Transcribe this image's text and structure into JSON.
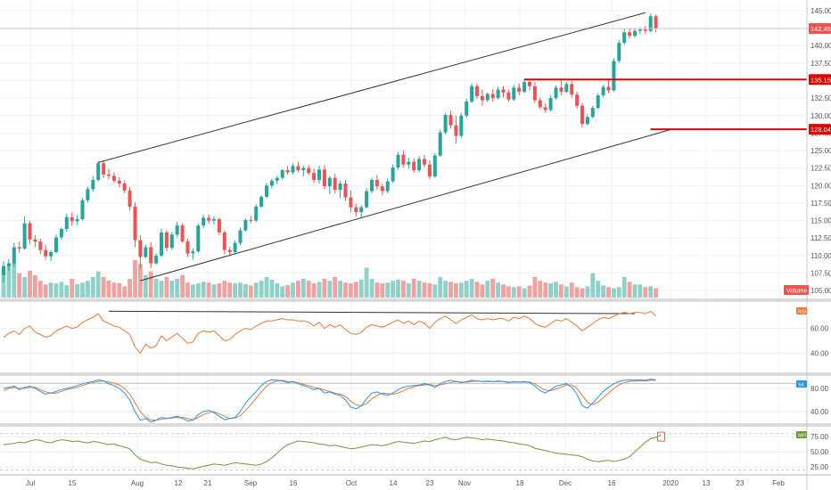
{
  "colors": {
    "up": "#26a69a",
    "down": "#ef5350",
    "vol_up": "#8fd0c8",
    "vol_down": "#f2a0a0",
    "level_line": "#e00000",
    "rsi": "#e8793a",
    "stoch_k": "#2196f3",
    "stoch_d": "#e8793a",
    "mfi": "#6a9a38",
    "trend": "#333333",
    "axis_text": "#555555"
  },
  "price_axis": {
    "ticks": [
      "145.00",
      "140.00",
      "137.50",
      "135.00",
      "132.50",
      "130.00",
      "127.50",
      "125.00",
      "122.50",
      "120.00",
      "117.50",
      "115.00",
      "112.50",
      "110.00",
      "107.50",
      "105.00"
    ]
  },
  "price_labels": {
    "last": "142.45",
    "level1": "135.15",
    "level2": "128.04"
  },
  "volume_label": "Volume",
  "rsi_panel": {
    "badge": "RSI",
    "ticks": [
      "60.00",
      "40.00"
    ]
  },
  "stoch_panel": {
    "badge": "SK",
    "ticks": [
      "80.00",
      "40.00"
    ]
  },
  "mfi_panel": {
    "badge": "MFI",
    "ticks": [
      "75.00",
      "50.00",
      "25.00"
    ]
  },
  "time_axis": {
    "labels": [
      "Jul",
      "15",
      "Aug",
      "12",
      "21",
      "Sep",
      "16",
      "Oct",
      "14",
      "23",
      "Nov",
      "18",
      "Dec",
      "16",
      "2020",
      "13",
      "23",
      "Feb"
    ]
  },
  "chart_data": {
    "type": "candlestick",
    "price_ylim": [
      104,
      145.5
    ],
    "candles": [
      [
        107.2,
        109.2,
        106.2,
        108.5
      ],
      [
        108.5,
        109.5,
        107.8,
        108.9
      ],
      [
        108.9,
        111.8,
        108.4,
        111.2
      ],
      [
        111.2,
        112.0,
        110.4,
        111.0
      ],
      [
        111.0,
        115.6,
        110.8,
        114.6
      ],
      [
        114.6,
        115.0,
        111.7,
        112.3
      ],
      [
        112.3,
        112.9,
        111.2,
        112.0
      ],
      [
        112.0,
        112.4,
        110.2,
        110.8
      ],
      [
        110.8,
        111.6,
        109.4,
        109.9
      ],
      [
        109.9,
        110.8,
        109.2,
        110.5
      ],
      [
        110.5,
        113.0,
        110.3,
        112.6
      ],
      [
        112.6,
        114.0,
        112.3,
        113.8
      ],
      [
        113.8,
        116.0,
        113.4,
        115.5
      ],
      [
        115.5,
        116.2,
        114.3,
        114.9
      ],
      [
        114.9,
        115.8,
        114.4,
        115.2
      ],
      [
        115.2,
        118.2,
        115.0,
        117.9
      ],
      [
        117.9,
        119.8,
        117.6,
        119.5
      ],
      [
        119.5,
        121.4,
        119.1,
        120.8
      ],
      [
        120.8,
        123.5,
        120.6,
        123.2
      ],
      [
        123.2,
        123.6,
        121.1,
        121.6
      ],
      [
        121.6,
        122.4,
        120.9,
        121.4
      ],
      [
        121.4,
        121.9,
        120.4,
        120.7
      ],
      [
        120.7,
        121.2,
        119.7,
        120.3
      ],
      [
        120.3,
        120.7,
        118.9,
        119.3
      ],
      [
        119.3,
        119.8,
        116.4,
        117.0
      ],
      [
        117.0,
        117.6,
        111.2,
        112.2
      ],
      [
        112.2,
        112.9,
        108.2,
        109.8
      ],
      [
        109.8,
        111.6,
        109.6,
        111.2
      ],
      [
        111.2,
        111.9,
        108.2,
        108.9
      ],
      [
        108.9,
        110.3,
        108.7,
        110.0
      ],
      [
        110.0,
        113.8,
        109.8,
        113.3
      ],
      [
        113.3,
        113.6,
        110.6,
        111.1
      ],
      [
        111.1,
        113.4,
        110.8,
        113.0
      ],
      [
        113.0,
        114.8,
        112.6,
        114.3
      ],
      [
        114.3,
        114.6,
        111.8,
        112.0
      ],
      [
        112.0,
        112.4,
        109.8,
        110.3
      ],
      [
        110.3,
        111.0,
        109.4,
        110.6
      ],
      [
        110.6,
        114.6,
        110.4,
        114.3
      ],
      [
        114.3,
        115.8,
        113.9,
        115.4
      ],
      [
        115.4,
        115.9,
        114.6,
        115.0
      ],
      [
        115.0,
        115.6,
        114.4,
        115.2
      ],
      [
        115.2,
        115.4,
        112.9,
        113.3
      ],
      [
        113.3,
        113.6,
        110.2,
        110.8
      ],
      [
        110.8,
        111.3,
        109.9,
        110.5
      ],
      [
        110.5,
        112.2,
        110.3,
        111.8
      ],
      [
        111.8,
        114.0,
        111.5,
        113.6
      ],
      [
        113.6,
        115.3,
        113.4,
        115.1
      ],
      [
        115.1,
        115.6,
        114.6,
        115.0
      ],
      [
        115.0,
        117.3,
        114.8,
        117.0
      ],
      [
        117.0,
        118.6,
        116.8,
        118.4
      ],
      [
        118.4,
        120.4,
        118.2,
        120.0
      ],
      [
        120.0,
        121.0,
        119.6,
        120.7
      ],
      [
        120.7,
        121.4,
        120.2,
        121.1
      ],
      [
        121.1,
        122.4,
        120.9,
        122.2
      ],
      [
        122.2,
        122.8,
        121.6,
        121.9
      ],
      [
        121.9,
        123.2,
        121.6,
        122.8
      ],
      [
        122.8,
        123.4,
        121.9,
        122.2
      ],
      [
        122.2,
        122.8,
        121.3,
        122.5
      ],
      [
        122.5,
        122.9,
        121.5,
        121.8
      ],
      [
        121.8,
        122.4,
        120.4,
        120.8
      ],
      [
        120.8,
        122.8,
        120.3,
        122.3
      ],
      [
        122.3,
        122.9,
        119.5,
        119.9
      ],
      [
        119.9,
        121.4,
        118.8,
        121.1
      ],
      [
        121.1,
        121.7,
        118.9,
        119.4
      ],
      [
        119.4,
        120.7,
        118.2,
        120.3
      ],
      [
        120.3,
        120.8,
        117.8,
        118.3
      ],
      [
        118.3,
        119.3,
        116.2,
        116.9
      ],
      [
        116.9,
        117.4,
        115.6,
        116.2
      ],
      [
        116.2,
        117.2,
        115.4,
        116.9
      ],
      [
        116.9,
        119.6,
        116.7,
        119.2
      ],
      [
        119.2,
        121.1,
        118.9,
        120.8
      ],
      [
        120.8,
        121.5,
        119.4,
        119.9
      ],
      [
        119.9,
        120.3,
        118.6,
        119.2
      ],
      [
        119.2,
        121.0,
        118.9,
        120.6
      ],
      [
        120.6,
        123.0,
        120.4,
        122.6
      ],
      [
        122.6,
        124.8,
        122.3,
        124.4
      ],
      [
        124.4,
        125.0,
        122.6,
        123.0
      ],
      [
        123.0,
        124.0,
        122.4,
        123.4
      ],
      [
        123.4,
        123.9,
        121.8,
        122.2
      ],
      [
        122.2,
        124.2,
        121.9,
        123.8
      ],
      [
        123.8,
        124.4,
        122.6,
        123.0
      ],
      [
        123.0,
        123.6,
        120.9,
        121.3
      ],
      [
        121.3,
        124.6,
        121.1,
        124.3
      ],
      [
        124.3,
        128.0,
        124.1,
        127.6
      ],
      [
        127.6,
        130.4,
        127.3,
        130.1
      ],
      [
        130.1,
        130.7,
        128.1,
        128.6
      ],
      [
        128.6,
        130.0,
        126.0,
        127.1
      ],
      [
        127.1,
        130.4,
        126.8,
        130.0
      ],
      [
        130.0,
        132.4,
        129.7,
        132.0
      ],
      [
        132.0,
        134.6,
        131.8,
        134.2
      ],
      [
        134.2,
        134.6,
        132.4,
        132.8
      ],
      [
        132.8,
        133.7,
        131.4,
        132.2
      ],
      [
        132.2,
        133.3,
        131.9,
        133.1
      ],
      [
        133.1,
        133.8,
        132.0,
        132.5
      ],
      [
        132.5,
        134.1,
        132.3,
        133.7
      ],
      [
        133.7,
        134.2,
        132.6,
        133.3
      ],
      [
        133.3,
        133.7,
        132.0,
        132.3
      ],
      [
        132.3,
        134.4,
        132.1,
        134.0
      ],
      [
        134.0,
        134.6,
        132.9,
        133.4
      ],
      [
        133.4,
        135.2,
        133.2,
        134.8
      ],
      [
        134.8,
        135.1,
        133.6,
        134.2
      ],
      [
        134.2,
        134.8,
        131.8,
        132.2
      ],
      [
        132.2,
        132.6,
        130.9,
        131.2
      ],
      [
        131.2,
        131.8,
        130.4,
        130.8
      ],
      [
        130.8,
        132.9,
        130.6,
        132.5
      ],
      [
        132.5,
        134.3,
        132.3,
        134.0
      ],
      [
        134.0,
        135.0,
        132.9,
        133.4
      ],
      [
        133.4,
        134.8,
        133.2,
        134.5
      ],
      [
        134.5,
        134.9,
        132.6,
        133.0
      ],
      [
        133.0,
        133.4,
        131.0,
        131.4
      ],
      [
        131.4,
        131.8,
        128.3,
        128.8
      ],
      [
        128.8,
        130.2,
        128.6,
        129.8
      ],
      [
        129.8,
        131.4,
        129.6,
        131.1
      ],
      [
        131.1,
        133.2,
        130.9,
        132.9
      ],
      [
        132.9,
        134.4,
        132.6,
        134.1
      ],
      [
        134.1,
        135.3,
        133.2,
        133.6
      ],
      [
        133.6,
        138.2,
        133.4,
        137.8
      ],
      [
        137.8,
        140.8,
        137.5,
        140.4
      ],
      [
        140.4,
        142.4,
        140.1,
        141.9
      ],
      [
        141.9,
        142.5,
        141.0,
        141.4
      ],
      [
        141.4,
        142.4,
        141.1,
        142.1
      ],
      [
        142.1,
        142.6,
        141.6,
        142.3
      ],
      [
        142.3,
        142.8,
        141.7,
        142.1
      ],
      [
        142.1,
        144.6,
        141.9,
        144.2
      ],
      [
        144.2,
        144.4,
        141.9,
        142.45
      ]
    ],
    "volume_rel": [
      0.75,
      0.85,
      0.95,
      0.65,
      0.55,
      0.72,
      0.6,
      0.45,
      0.35,
      0.4,
      0.38,
      0.42,
      0.33,
      0.5,
      0.36,
      0.4,
      0.45,
      0.55,
      0.7,
      0.55,
      0.45,
      0.4,
      0.38,
      0.3,
      0.5,
      1.0,
      0.9,
      0.6,
      0.7,
      0.5,
      0.45,
      0.55,
      0.45,
      0.5,
      0.6,
      0.4,
      0.35,
      0.38,
      0.42,
      0.4,
      0.35,
      0.38,
      0.45,
      0.4,
      0.38,
      0.4,
      0.36,
      0.32,
      0.4,
      0.45,
      0.55,
      0.48,
      0.38,
      0.3,
      0.33,
      0.4,
      0.45,
      0.5,
      0.45,
      0.38,
      0.42,
      0.5,
      0.45,
      0.55,
      0.45,
      0.4,
      0.38,
      0.42,
      0.48,
      0.8,
      0.5,
      0.4,
      0.38,
      0.4,
      0.45,
      0.48,
      0.45,
      0.38,
      0.5,
      0.45,
      0.4,
      0.38,
      0.35,
      0.55,
      0.45,
      0.42,
      0.38,
      0.4,
      0.45,
      0.5,
      0.42,
      0.35,
      0.45,
      0.5,
      0.4,
      0.35,
      0.3,
      0.28,
      0.3,
      0.25,
      0.32,
      0.55,
      0.45,
      0.4,
      0.38,
      0.42,
      0.35,
      0.3,
      0.4,
      0.28,
      0.25,
      0.3,
      0.65,
      0.45,
      0.32,
      0.28,
      0.25,
      0.28,
      0.55,
      0.42,
      0.35,
      0.35,
      0.28,
      0.3,
      0.25
    ],
    "trendlines": [
      {
        "from": [
          18,
          123.3
        ],
        "to": [
          122,
          144.7
        ]
      },
      {
        "from": [
          26,
          106.4
        ],
        "to": [
          127,
          128.04
        ]
      }
    ],
    "levels": [
      {
        "value": 135.15,
        "from_index": 99
      },
      {
        "value": 128.04,
        "from_index": 123
      }
    ],
    "rsi": {
      "ylim": [
        25,
        80
      ],
      "values": [
        53,
        56,
        58,
        55,
        60,
        62,
        57,
        55,
        53,
        54,
        58,
        60,
        62,
        60,
        61,
        65,
        67,
        69,
        72,
        66,
        64,
        62,
        61,
        58,
        55,
        45,
        40,
        47,
        44,
        46,
        54,
        50,
        53,
        56,
        52,
        48,
        49,
        56,
        58,
        57,
        58,
        54,
        50,
        51,
        55,
        58,
        60,
        59,
        62,
        64,
        66,
        66,
        67,
        68,
        67,
        67,
        66,
        66,
        65,
        62,
        65,
        60,
        63,
        61,
        63,
        59,
        56,
        55,
        57,
        61,
        63,
        62,
        61,
        63,
        65,
        67,
        64,
        66,
        63,
        66,
        64,
        60,
        65,
        68,
        70,
        67,
        64,
        67,
        69,
        71,
        68,
        67,
        68,
        67,
        68,
        68,
        66,
        69,
        68,
        70,
        68,
        64,
        62,
        61,
        64,
        67,
        66,
        68,
        65,
        62,
        58,
        61,
        64,
        67,
        69,
        68,
        70,
        72,
        73,
        72,
        73,
        73,
        72,
        74,
        70
      ]
    },
    "stoch": {
      "ylim": [
        20,
        100
      ],
      "k": [
        80,
        82,
        84,
        78,
        82,
        84,
        80,
        75,
        70,
        72,
        75,
        78,
        80,
        82,
        85,
        88,
        90,
        92,
        95,
        93,
        88,
        85,
        80,
        72,
        60,
        40,
        25,
        28,
        22,
        25,
        30,
        28,
        30,
        32,
        28,
        24,
        25,
        35,
        40,
        42,
        38,
        32,
        26,
        28,
        30,
        40,
        55,
        65,
        75,
        85,
        92,
        95,
        94,
        93,
        90,
        92,
        88,
        85,
        82,
        78,
        80,
        72,
        74,
        70,
        68,
        60,
        48,
        45,
        50,
        62,
        72,
        74,
        70,
        68,
        72,
        78,
        82,
        84,
        85,
        86,
        88,
        86,
        82,
        88,
        92,
        94,
        92,
        90,
        92,
        94,
        93,
        92,
        93,
        92,
        93,
        92,
        90,
        92,
        91,
        92,
        90,
        84,
        76,
        72,
        78,
        84,
        86,
        88,
        82,
        70,
        50,
        46,
        55,
        65,
        75,
        82,
        88,
        92,
        94,
        95,
        94,
        95,
        94,
        96,
        95
      ],
      "d": [
        76,
        80,
        82,
        80,
        80,
        82,
        82,
        78,
        74,
        72,
        72,
        75,
        78,
        80,
        82,
        85,
        88,
        90,
        92,
        93,
        91,
        89,
        86,
        80,
        70,
        55,
        40,
        30,
        26,
        25,
        27,
        28,
        29,
        30,
        30,
        28,
        26,
        30,
        35,
        38,
        40,
        36,
        32,
        28,
        29,
        33,
        42,
        52,
        63,
        74,
        84,
        90,
        93,
        94,
        92,
        91,
        90,
        87,
        85,
        82,
        80,
        77,
        75,
        72,
        70,
        66,
        58,
        52,
        50,
        54,
        62,
        68,
        72,
        71,
        70,
        72,
        76,
        80,
        83,
        85,
        86,
        87,
        85,
        86,
        88,
        90,
        92,
        91,
        91,
        92,
        93,
        92,
        92,
        92,
        92,
        92,
        91,
        91,
        91,
        91,
        91,
        88,
        82,
        77,
        76,
        79,
        82,
        86,
        86,
        80,
        68,
        56,
        52,
        56,
        64,
        72,
        80,
        86,
        90,
        92,
        93,
        93,
        93,
        94,
        94
      ]
    },
    "mfi": {
      "ylim": [
        15,
        90
      ],
      "values": [
        62,
        63,
        64,
        66,
        65,
        68,
        70,
        69,
        66,
        65,
        68,
        70,
        69,
        67,
        68,
        66,
        65,
        67,
        66,
        64,
        62,
        63,
        60,
        58,
        55,
        45,
        38,
        35,
        32,
        33,
        30,
        28,
        27,
        25,
        24,
        23,
        22,
        24,
        26,
        28,
        30,
        29,
        28,
        30,
        32,
        31,
        30,
        29,
        28,
        30,
        34,
        40,
        48,
        56,
        62,
        65,
        68,
        67,
        66,
        65,
        63,
        62,
        60,
        61,
        59,
        57,
        55,
        56,
        58,
        60,
        62,
        61,
        60,
        62,
        65,
        67,
        66,
        65,
        64,
        66,
        68,
        67,
        70,
        72,
        74,
        71,
        70,
        72,
        74,
        73,
        72,
        70,
        71,
        70,
        69,
        68,
        66,
        65,
        63,
        62,
        60,
        56,
        54,
        52,
        50,
        48,
        47,
        46,
        45,
        44,
        42,
        38,
        35,
        34,
        35,
        36,
        34,
        36,
        38,
        42,
        50,
        58,
        66,
        72,
        74,
        78
      ]
    }
  }
}
